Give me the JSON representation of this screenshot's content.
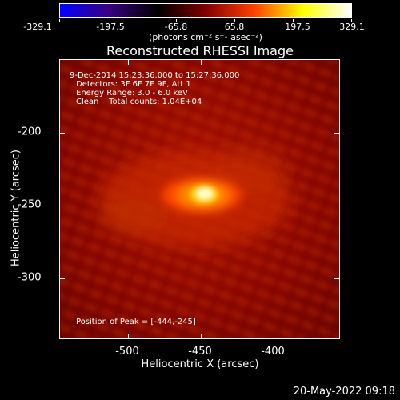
{
  "colorbar": {
    "labels": [
      "-329.1",
      "-197.5",
      "-65.8",
      "65.8",
      "197.5",
      "329.1"
    ],
    "unit": "(photons cm⁻² s⁻¹ asec⁻²)",
    "colors": [
      "#0000ff",
      "#3a0080",
      "#000000",
      "#800000",
      "#ff4000",
      "#ffff00",
      "#ffffff"
    ]
  },
  "title": "Reconstructed RHESSI Image",
  "info": {
    "time": "9-Dec-2014 15:23:36.000 to 15:27:36.000",
    "detectors": "Detectors: 3F 6F 7F 9F, Att 1",
    "energy": "Energy Range: 3.0 - 6.0 keV",
    "clean": "Clean    Total counts: 1.04E+04",
    "peak": "Position of Peak = [-444,-245]"
  },
  "axes": {
    "y_title": "Heliocentric Y (arcsec)",
    "x_title": "Heliocentric X (arcsec)",
    "y_ticks": [
      "-200",
      "-250",
      "-300"
    ],
    "x_ticks": [
      "-500",
      "-450",
      "-400"
    ]
  },
  "footer": {
    "date": "20-May-2022 09:18"
  }
}
